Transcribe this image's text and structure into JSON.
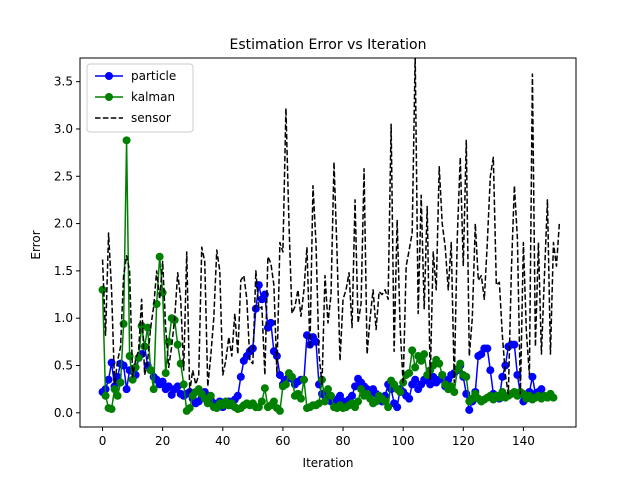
{
  "chart_data": {
    "type": "line",
    "title": "Estimation Error vs Iteration",
    "xlabel": "Iteration",
    "ylabel": "Error",
    "xlim": [
      -7.5,
      157.5
    ],
    "ylim": [
      -0.15,
      3.75
    ],
    "xticks": [
      0,
      20,
      40,
      60,
      80,
      100,
      120,
      140
    ],
    "yticks": [
      0.0,
      0.5,
      1.0,
      1.5,
      2.0,
      2.5,
      3.0,
      3.5
    ],
    "grid": false,
    "legend": {
      "placement": "top-left"
    },
    "series": [
      {
        "name": "particle",
        "color": "#0000ff",
        "style": "solid",
        "marker": "circle",
        "values": [
          0.22,
          0.25,
          0.35,
          0.53,
          0.28,
          0.38,
          0.52,
          0.5,
          0.25,
          0.45,
          0.44,
          0.4,
          0.58,
          0.62,
          0.7,
          0.5,
          0.45,
          0.38,
          0.35,
          0.3,
          0.33,
          0.25,
          0.28,
          0.19,
          0.25,
          0.28,
          0.2,
          0.18,
          0.2,
          0.22,
          0.15,
          0.1,
          0.12,
          0.16,
          0.22,
          0.18,
          0.14,
          0.1,
          0.08,
          0.12,
          0.06,
          0.1,
          0.12,
          0.08,
          0.14,
          0.18,
          0.38,
          0.55,
          0.6,
          0.65,
          0.68,
          1.1,
          1.35,
          1.2,
          1.25,
          0.9,
          0.95,
          0.65,
          0.6,
          0.4,
          0.3,
          0.35,
          0.38,
          0.36,
          0.3,
          0.33,
          0.35,
          0.35,
          0.82,
          0.72,
          0.8,
          0.75,
          0.3,
          0.2,
          0.18,
          0.16,
          0.12,
          0.1,
          0.14,
          0.18,
          0.12,
          0.1,
          0.14,
          0.18,
          0.28,
          0.36,
          0.32,
          0.28,
          0.25,
          0.22,
          0.25,
          0.2,
          0.15,
          0.12,
          0.18,
          0.3,
          0.25,
          0.1,
          0.06,
          0.25,
          0.22,
          0.18,
          0.15,
          0.3,
          0.35,
          0.25,
          0.3,
          0.35,
          0.34,
          0.3,
          0.38,
          0.32,
          0.35,
          0.4,
          0.28,
          0.35,
          0.4,
          0.42,
          0.45,
          0.5,
          0.38,
          0.2,
          0.03,
          0.12,
          0.22,
          0.6,
          0.62,
          0.68,
          0.68,
          0.45,
          0.2,
          0.18,
          0.15,
          0.38,
          0.5,
          0.7,
          0.72,
          0.72,
          0.4,
          0.2,
          0.12,
          0.15,
          0.22,
          0.38,
          0.2,
          0.22,
          0.25
        ]
      },
      {
        "name": "kalman",
        "color": "#008000",
        "style": "solid",
        "marker": "circle",
        "values": [
          1.3,
          0.18,
          0.05,
          0.04,
          0.25,
          0.18,
          0.32,
          0.94,
          2.88,
          0.6,
          0.35,
          0.48,
          0.58,
          0.92,
          0.7,
          0.9,
          0.45,
          0.25,
          1.15,
          1.65,
          1.27,
          0.42,
          0.75,
          1.0,
          0.98,
          0.72,
          0.52,
          0.3,
          0.02,
          0.05,
          0.18,
          0.22,
          0.25,
          0.2,
          0.15,
          0.1,
          0.18,
          0.06,
          0.05,
          0.1,
          0.08,
          0.12,
          0.08,
          0.1,
          0.06,
          0.04,
          0.05,
          0.08,
          0.1,
          0.08,
          0.1,
          0.06,
          0.06,
          0.12,
          0.26,
          0.06,
          0.08,
          0.12,
          0.05,
          0.02,
          0.28,
          0.3,
          0.42,
          0.38,
          0.18,
          0.2,
          0.15,
          0.35,
          0.05,
          0.06,
          0.08,
          0.08,
          0.1,
          0.35,
          0.12,
          0.25,
          0.18,
          0.06,
          0.05,
          0.08,
          0.05,
          0.06,
          0.08,
          0.1,
          0.06,
          0.12,
          0.25,
          0.18,
          0.2,
          0.15,
          0.1,
          0.12,
          0.18,
          0.15,
          0.12,
          0.06,
          0.34,
          0.3,
          0.25,
          0.22,
          0.32,
          0.4,
          0.42,
          0.66,
          0.48,
          0.6,
          0.55,
          0.62,
          0.4,
          0.45,
          0.5,
          0.56,
          0.52,
          0.4,
          0.3,
          0.25,
          0.28,
          0.22,
          0.46,
          0.52,
          0.4,
          0.38,
          0.12,
          0.15,
          0.2,
          0.15,
          0.12,
          0.14,
          0.16,
          0.18,
          0.14,
          0.18,
          0.16,
          0.22,
          0.16,
          0.18,
          0.2,
          0.22,
          0.18,
          0.22,
          0.2,
          0.15,
          0.18,
          0.14,
          0.16,
          0.18,
          0.15,
          0.18,
          0.16,
          0.2,
          0.16
        ]
      },
      {
        "name": "sensor",
        "color": "#000000",
        "style": "dashed",
        "marker": "none",
        "values": [
          1.62,
          0.82,
          1.9,
          1.3,
          0.3,
          0.55,
          0.7,
          1.45,
          1.66,
          1.5,
          0.38,
          0.56,
          0.66,
          1.2,
          0.4,
          0.55,
          0.9,
          1.12,
          1.5,
          1.2,
          1.6,
          0.9,
          0.48,
          0.7,
          1.0,
          1.48,
          1.2,
          0.45,
          1.7,
          0.22,
          0.45,
          0.3,
          0.4,
          1.75,
          1.6,
          0.28,
          0.6,
          1.0,
          1.72,
          1.5,
          0.4,
          0.55,
          0.8,
          0.6,
          1.05,
          0.62,
          1.4,
          1.45,
          1.2,
          0.55,
          0.52,
          1.5,
          1.1,
          1.12,
          0.4,
          1.65,
          1.58,
          1.35,
          0.42,
          1.8,
          1.7,
          3.22,
          2.02,
          1.05,
          1.12,
          1.3,
          1.02,
          1.3,
          1.75,
          0.68,
          2.4,
          1.8,
          0.62,
          0.3,
          1.45,
          0.95,
          1.25,
          2.65,
          1.7,
          0.55,
          1.2,
          1.3,
          1.48,
          0.9,
          2.25,
          0.95,
          1.15,
          2.58,
          0.62,
          1.0,
          1.3,
          0.88,
          1.28,
          1.25,
          1.3,
          1.2,
          3.05,
          0.65,
          2.04,
          0.9,
          0.3,
          1.55,
          1.72,
          1.9,
          3.78,
          1.05,
          2.3,
          1.1,
          2.18,
          0.35,
          1.7,
          1.3,
          2.6,
          2.0,
          1.75,
          1.3,
          1.8,
          0.32,
          1.85,
          2.7,
          1.55,
          2.88,
          0.6,
          1.0,
          2.0,
          1.4,
          1.45,
          1.2,
          1.8,
          2.5,
          2.7,
          1.35,
          1.38,
          0.82,
          0.4,
          0.2,
          1.5,
          2.4,
          1.85,
          0.2,
          1.8,
          0.85,
          0.4,
          3.58,
          0.7,
          1.8,
          0.62,
          1.45,
          2.25,
          0.62,
          1.8,
          1.55,
          2.02
        ]
      }
    ]
  }
}
